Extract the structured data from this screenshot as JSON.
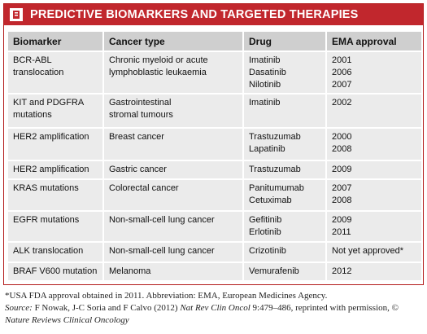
{
  "header": {
    "title": "PREDICTIVE BIOMARKERS AND TARGETED THERAPIES"
  },
  "table": {
    "columns": [
      "Biomarker",
      "Cancer type",
      "Drug",
      "EMA approval"
    ],
    "rows": [
      {
        "biomarker": [
          "BCR-ABL",
          "translocation"
        ],
        "cancer_type": [
          "Chronic myeloid or acute",
          "lymphoblastic leukaemia"
        ],
        "drug": [
          "Imatinib",
          "Dasatinib",
          "Nilotinib"
        ],
        "ema_approval": [
          "2001",
          "2006",
          "2007"
        ]
      },
      {
        "biomarker": [
          "KIT and PDGFRA",
          "mutations"
        ],
        "cancer_type": [
          "Gastrointestinal",
          "stromal tumours"
        ],
        "drug": [
          "Imatinib"
        ],
        "ema_approval": [
          "2002"
        ]
      },
      {
        "biomarker": [
          "HER2 amplification"
        ],
        "cancer_type": [
          "Breast cancer"
        ],
        "drug": [
          "Trastuzumab",
          "Lapatinib"
        ],
        "ema_approval": [
          "2000",
          "2008"
        ]
      },
      {
        "biomarker": [
          "HER2 amplification"
        ],
        "cancer_type": [
          "Gastric cancer"
        ],
        "drug": [
          "Trastuzumab"
        ],
        "ema_approval": [
          "2009"
        ]
      },
      {
        "biomarker": [
          "KRAS mutations"
        ],
        "cancer_type": [
          "Colorectal cancer"
        ],
        "drug": [
          "Panitumumab",
          "Cetuximab"
        ],
        "ema_approval": [
          "2007",
          "2008"
        ]
      },
      {
        "biomarker": [
          "EGFR mutations"
        ],
        "cancer_type": [
          "Non-small-cell lung cancer"
        ],
        "drug": [
          "Gefitinib",
          "Erlotinib"
        ],
        "ema_approval": [
          "2009",
          "2011"
        ]
      },
      {
        "biomarker": [
          "ALK translocation"
        ],
        "cancer_type": [
          "Non-small-cell lung cancer"
        ],
        "drug": [
          "Crizotinib"
        ],
        "ema_approval": [
          "Not yet approved*"
        ]
      },
      {
        "biomarker": [
          "BRAF V600 mutation"
        ],
        "cancer_type": [
          "Melanoma"
        ],
        "drug": [
          "Vemurafenib"
        ],
        "ema_approval": [
          "2012"
        ]
      }
    ]
  },
  "footnote": {
    "note": "*USA FDA approval obtained in 2011. Abbreviation: EMA, European Medicines Agency.",
    "source": [
      {
        "text": "Source:",
        "italic": true
      },
      {
        "text": " F Nowak, J-C Soria and F Calvo (2012) ",
        "italic": false
      },
      {
        "text": "Nat Rev Clin Oncol",
        "italic": true
      },
      {
        "text": " 9:479–486, reprinted with permission, © ",
        "italic": false
      },
      {
        "text": "Nature Reviews Clinical Oncology",
        "italic": true
      }
    ]
  }
}
